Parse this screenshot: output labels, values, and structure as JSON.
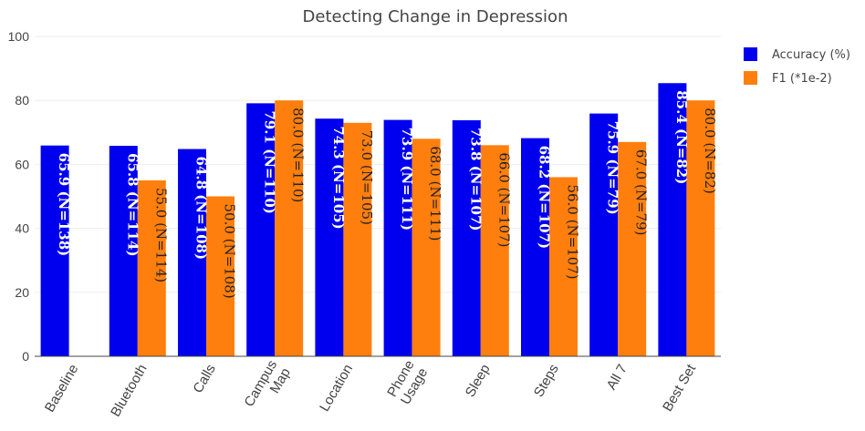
{
  "chart_data": {
    "type": "bar",
    "title": "Detecting Change in Depression",
    "xlabel": "",
    "ylabel": "",
    "ylim": [
      0,
      100
    ],
    "yticks": [
      "0",
      "20",
      "40",
      "60",
      "80",
      "100"
    ],
    "categories": [
      "Baseline",
      "Bluetooth",
      "Calls",
      "Campus Map",
      "Location",
      "Phone Usage",
      "Sleep",
      "Steps",
      "All 7",
      "Best Set"
    ],
    "category_lines": [
      [
        "Baseline"
      ],
      [
        "Bluetooth"
      ],
      [
        "Calls"
      ],
      [
        "Campus",
        "Map"
      ],
      [
        "Location"
      ],
      [
        "Phone",
        "Usage"
      ],
      [
        "Sleep"
      ],
      [
        "Steps"
      ],
      [
        "All 7"
      ],
      [
        "Best Set"
      ]
    ],
    "series": [
      {
        "name": "Accuracy (%)",
        "color": "#0000ee",
        "values": [
          65.9,
          65.8,
          64.8,
          79.1,
          74.3,
          73.9,
          73.8,
          68.2,
          75.9,
          85.4
        ],
        "labels": [
          "65.9  (N=138)",
          "65.8  (N=114)",
          "64.8  (N=108)",
          "79.1  (N=110)",
          "74.3  (N=105)",
          "73.9  (N=111)",
          "73.8  (N=107)",
          "68.2  (N=107)",
          "75.9  (N=79)",
          "85.4  (N=82)"
        ]
      },
      {
        "name": "F1 (*1e-2)",
        "color": "#ff7f0e",
        "values": [
          null,
          55.0,
          50.0,
          80.0,
          73.0,
          68.0,
          66.0,
          56.0,
          67.0,
          80.0
        ],
        "labels": [
          "",
          "55.0  (N=114)",
          "50.0  (N=108)",
          "80.0  (N=110)",
          "73.0  (N=105)",
          "68.0  (N=111)",
          "66.0  (N=107)",
          "56.0  (N=107)",
          "67.0  (N=79)",
          "80.0  (N=82)"
        ]
      }
    ],
    "legend_position": "top-right",
    "grid": true
  }
}
